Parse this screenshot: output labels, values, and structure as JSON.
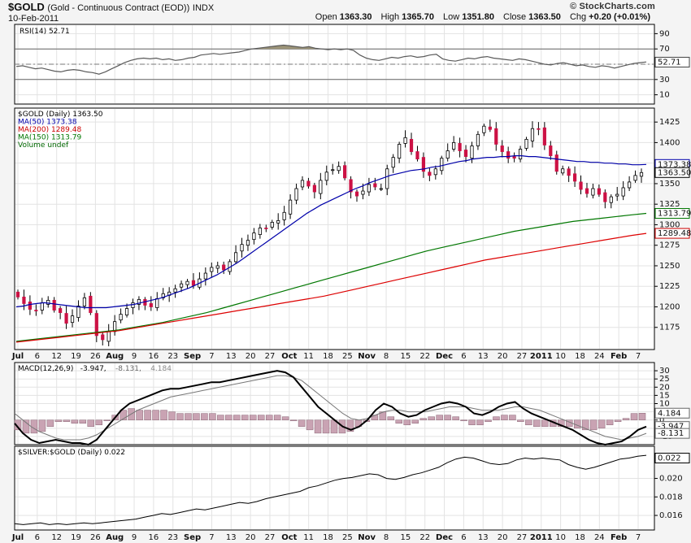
{
  "header": {
    "symbol": "$GOLD",
    "description": "(Gold - Continuous Contract (EOD))",
    "exchange": "INDX",
    "date": "10-Feb-2011",
    "ohlc": [
      {
        "label": "Open",
        "value": "1363.30"
      },
      {
        "label": "High",
        "value": "1365.70"
      },
      {
        "label": "Low",
        "value": "1351.80"
      },
      {
        "label": "Close",
        "value": "1363.50"
      },
      {
        "label": "Chg",
        "value": "+0.20 (+0.01%)"
      }
    ],
    "watermark": "© StockCharts.com"
  },
  "x_axis": {
    "tick_labels": [
      "Jul",
      "6",
      "12",
      "19",
      "26",
      "Aug",
      "9",
      "16",
      "23",
      "Sep",
      "7",
      "13",
      "20",
      "27",
      "Oct",
      "11",
      "18",
      "25",
      "Nov",
      "8",
      "15",
      "22",
      "Dec",
      "6",
      "13",
      "20",
      "27",
      "2011",
      "10",
      "18",
      "24",
      "Feb",
      "7"
    ],
    "bold_labels": [
      "Jul",
      "Aug",
      "Sep",
      "Oct",
      "Nov",
      "Dec",
      "2011",
      "Feb"
    ]
  },
  "chart_data": [
    {
      "type": "line",
      "panel": "rsi",
      "legend": [
        {
          "name": "RSI(14) 52.71",
          "color": "#000000"
        }
      ],
      "series": [
        {
          "name": "RSI(14)",
          "color": "#5a5a5a",
          "values": [
            47,
            48,
            46,
            44,
            45,
            43,
            41,
            40,
            42,
            43,
            42,
            40,
            39,
            37,
            40,
            44,
            48,
            52,
            55,
            57,
            58,
            57,
            58,
            56,
            57,
            55,
            56,
            58,
            59,
            62,
            63,
            64,
            63,
            64,
            65,
            66,
            68,
            70,
            71,
            72,
            73,
            74,
            75,
            74,
            73,
            72,
            73,
            71,
            70,
            69,
            70,
            69,
            70,
            68,
            62,
            58,
            56,
            55,
            57,
            59,
            58,
            60,
            61,
            59,
            60,
            62,
            63,
            57,
            55,
            54,
            56,
            58,
            57,
            59,
            60,
            58,
            57,
            56,
            55,
            57,
            56,
            54,
            52,
            50,
            49,
            51,
            52,
            50,
            48,
            49,
            47,
            46,
            48,
            47,
            45,
            47,
            49,
            51,
            52,
            53
          ]
        }
      ],
      "y_ticks": [
        10,
        30,
        50,
        70,
        90
      ],
      "ylim": [
        0,
        100
      ],
      "last_value": "52.71"
    },
    {
      "type": "candlestick",
      "panel": "price",
      "legend": [
        {
          "name": "$GOLD (Daily) 1363.50",
          "color": "#000000"
        },
        {
          "name": "MA(50) 1373.38",
          "color": "#0000aa"
        },
        {
          "name": "MA(200) 1289.48",
          "color": "#cc0000"
        },
        {
          "name": "MA(150) 1313.79",
          "color": "#007700"
        },
        {
          "name": "Volume undef",
          "color": "#006600"
        }
      ],
      "close": [
        1212,
        1204,
        1197,
        1195,
        1205,
        1208,
        1196,
        1193,
        1180,
        1189,
        1201,
        1211,
        1193,
        1165,
        1160,
        1170,
        1182,
        1191,
        1198,
        1205,
        1209,
        1202,
        1200,
        1210,
        1216,
        1218,
        1222,
        1228,
        1231,
        1226,
        1234,
        1241,
        1248,
        1250,
        1245,
        1255,
        1266,
        1276,
        1281,
        1290,
        1296,
        1295,
        1303,
        1305,
        1315,
        1330,
        1344,
        1354,
        1347,
        1340,
        1354,
        1364,
        1367,
        1371,
        1357,
        1340,
        1335,
        1341,
        1349,
        1346,
        1344,
        1368,
        1382,
        1398,
        1406,
        1389,
        1380,
        1365,
        1360,
        1368,
        1381,
        1390,
        1400,
        1390,
        1383,
        1396,
        1410,
        1420,
        1416,
        1398,
        1389,
        1381,
        1381,
        1392,
        1404,
        1417,
        1416,
        1397,
        1384,
        1365,
        1368,
        1360,
        1353,
        1343,
        1338,
        1344,
        1337,
        1328,
        1334,
        1337,
        1345,
        1352,
        1360,
        1363.5
      ],
      "ma50": [
        1200,
        1201,
        1203,
        1204,
        1205,
        1204,
        1203,
        1202,
        1201,
        1200,
        1199,
        1199,
        1199,
        1199,
        1200,
        1201,
        1202,
        1203,
        1205,
        1207,
        1209,
        1211,
        1214,
        1217,
        1220,
        1223,
        1227,
        1231,
        1235,
        1239,
        1244,
        1249,
        1254,
        1260,
        1266,
        1272,
        1278,
        1284,
        1290,
        1296,
        1302,
        1308,
        1314,
        1319,
        1324,
        1328,
        1332,
        1336,
        1340,
        1344,
        1347,
        1351,
        1354,
        1357,
        1360,
        1362,
        1364,
        1366,
        1367,
        1368,
        1370,
        1371,
        1373,
        1375,
        1377,
        1378,
        1380,
        1381,
        1382,
        1382,
        1383,
        1383,
        1384,
        1384,
        1383,
        1383,
        1382,
        1381,
        1380,
        1379,
        1378,
        1377,
        1377,
        1376,
        1376,
        1375,
        1375,
        1374,
        1374,
        1373,
        1373,
        1373.38
      ],
      "ma150": [
        1158,
        1160,
        1162,
        1164,
        1166,
        1168,
        1170,
        1172,
        1175,
        1178,
        1181,
        1185,
        1189,
        1193,
        1198,
        1203,
        1208,
        1213,
        1218,
        1223,
        1228,
        1233,
        1238,
        1243,
        1248,
        1253,
        1258,
        1263,
        1268,
        1272,
        1276,
        1280,
        1284,
        1288,
        1292,
        1295,
        1298,
        1301,
        1304,
        1306,
        1308,
        1310,
        1312,
        1313.79
      ],
      "ma200": [
        1157,
        1159,
        1161,
        1163,
        1165,
        1167,
        1169,
        1171,
        1174,
        1177,
        1180,
        1183,
        1186,
        1189,
        1192,
        1195,
        1198,
        1201,
        1204,
        1207,
        1210,
        1213,
        1217,
        1221,
        1225,
        1229,
        1233,
        1237,
        1241,
        1245,
        1249,
        1253,
        1257,
        1260,
        1263,
        1266,
        1269,
        1272,
        1275,
        1278,
        1281,
        1284,
        1287,
        1289.48
      ],
      "y_ticks": [
        1175,
        1200,
        1225,
        1250,
        1275,
        1300,
        1325,
        1350,
        1375,
        1400,
        1425
      ],
      "ylim": [
        1150,
        1440
      ],
      "value_tags": [
        {
          "value": "1373.38",
          "price": 1373.38,
          "color": "#0000aa"
        },
        {
          "value": "1363.50",
          "price": 1363.5,
          "color": "#000000"
        },
        {
          "value": "1313.79",
          "price": 1313.79,
          "color": "#007700"
        },
        {
          "value": "1289.48",
          "price": 1289.48,
          "color": "#cc0000"
        }
      ]
    },
    {
      "type": "line",
      "panel": "macd",
      "legend": [
        {
          "name": "MACD(12,26,9)",
          "color": "#000000"
        },
        {
          "name": "-3.947,",
          "color": "#000000"
        },
        {
          "name": "-8.131,",
          "color": "#666666"
        },
        {
          "name": "4.184",
          "color": "#888888"
        }
      ],
      "series": [
        {
          "name": "MACD",
          "color": "#000000",
          "values": [
            -2,
            -8,
            -12,
            -14,
            -13,
            -12,
            -13,
            -14,
            -14,
            -15,
            -12,
            -6,
            0,
            6,
            10,
            12,
            14,
            16,
            18,
            19,
            19,
            20,
            21,
            22,
            23,
            23,
            24,
            25,
            26,
            27,
            28,
            29,
            30,
            29,
            26,
            20,
            14,
            8,
            4,
            0,
            -4,
            -6,
            -4,
            0,
            6,
            10,
            8,
            4,
            2,
            3,
            6,
            8,
            10,
            11,
            10,
            8,
            4,
            3,
            5,
            8,
            10,
            11,
            7,
            4,
            2,
            0,
            -2,
            -4,
            -6,
            -9,
            -12,
            -14,
            -15,
            -14,
            -13,
            -10,
            -6,
            -4
          ]
        },
        {
          "name": "Signal",
          "color": "#666666",
          "values": [
            4,
            0,
            -4,
            -7,
            -9,
            -11,
            -12,
            -12,
            -12,
            -11,
            -9,
            -6,
            -3,
            0,
            3,
            6,
            8,
            10,
            12,
            14,
            15,
            16,
            17,
            18,
            19,
            20,
            21,
            22,
            23,
            24,
            25,
            26,
            27,
            27,
            26,
            24,
            20,
            16,
            12,
            8,
            4,
            1,
            0,
            1,
            3,
            5,
            6,
            6,
            5,
            5,
            5,
            6,
            7,
            8,
            8,
            8,
            7,
            6,
            6,
            6,
            7,
            8,
            8,
            7,
            6,
            4,
            2,
            0,
            -2,
            -4,
            -6,
            -8,
            -10,
            -11,
            -12,
            -11,
            -10,
            -8.131
          ]
        },
        {
          "name": "Histogram",
          "color": "#b08898",
          "values": [
            -6,
            -8,
            -8,
            -7,
            -4,
            -1,
            -1,
            -2,
            -2,
            -4,
            -3,
            0,
            3,
            6,
            7,
            6,
            6,
            6,
            6,
            5,
            4,
            4,
            4,
            4,
            4,
            3,
            3,
            3,
            3,
            3,
            3,
            3,
            3,
            2,
            0,
            -4,
            -6,
            -8,
            -8,
            -8,
            -8,
            -7,
            -4,
            -1,
            3,
            5,
            2,
            -2,
            -3,
            -2,
            1,
            2,
            3,
            3,
            2,
            0,
            -3,
            -3,
            -1,
            2,
            3,
            3,
            -1,
            -3,
            -4,
            -4,
            -4,
            -4,
            -4,
            -5,
            -6,
            -6,
            -5,
            -3,
            -1,
            1,
            4,
            4.184
          ]
        }
      ],
      "y_ticks": [
        -10,
        -5,
        0,
        5,
        10,
        15,
        20,
        25,
        30
      ],
      "ylim": [
        -14,
        34
      ],
      "value_tags": [
        {
          "value": "4.184",
          "level": 4.184
        },
        {
          "value": "-3.947",
          "level": -3.947
        },
        {
          "value": "-8.131",
          "level": -8.131
        }
      ]
    },
    {
      "type": "line",
      "panel": "ratio",
      "legend": [
        {
          "name": "$SILVER:$GOLD (Daily) 0.022",
          "color": "#000000"
        }
      ],
      "series": [
        {
          "name": "$SILVER:$GOLD",
          "color": "#000000",
          "values": [
            0.0151,
            0.015,
            0.0151,
            0.0152,
            0.015,
            0.0151,
            0.015,
            0.0151,
            0.0152,
            0.0151,
            0.0152,
            0.0153,
            0.0154,
            0.0155,
            0.0156,
            0.0158,
            0.016,
            0.0162,
            0.0161,
            0.0163,
            0.0165,
            0.0167,
            0.0166,
            0.0168,
            0.017,
            0.0172,
            0.0174,
            0.0173,
            0.0175,
            0.0178,
            0.018,
            0.0182,
            0.0184,
            0.0186,
            0.019,
            0.0192,
            0.0195,
            0.0198,
            0.02,
            0.0201,
            0.0203,
            0.0205,
            0.0204,
            0.02,
            0.0199,
            0.0201,
            0.0204,
            0.0206,
            0.0209,
            0.0212,
            0.0217,
            0.0221,
            0.0223,
            0.0222,
            0.0219,
            0.0216,
            0.0215,
            0.0216,
            0.022,
            0.0222,
            0.0221,
            0.0222,
            0.0221,
            0.022,
            0.0215,
            0.0212,
            0.021,
            0.0212,
            0.0215,
            0.0218,
            0.0221,
            0.0222,
            0.0224,
            0.0225
          ]
        }
      ],
      "y_ticks": [
        0.016,
        0.018,
        0.02
      ],
      "ylim": [
        0.0146,
        0.0233
      ],
      "last_value": "0.022"
    }
  ]
}
